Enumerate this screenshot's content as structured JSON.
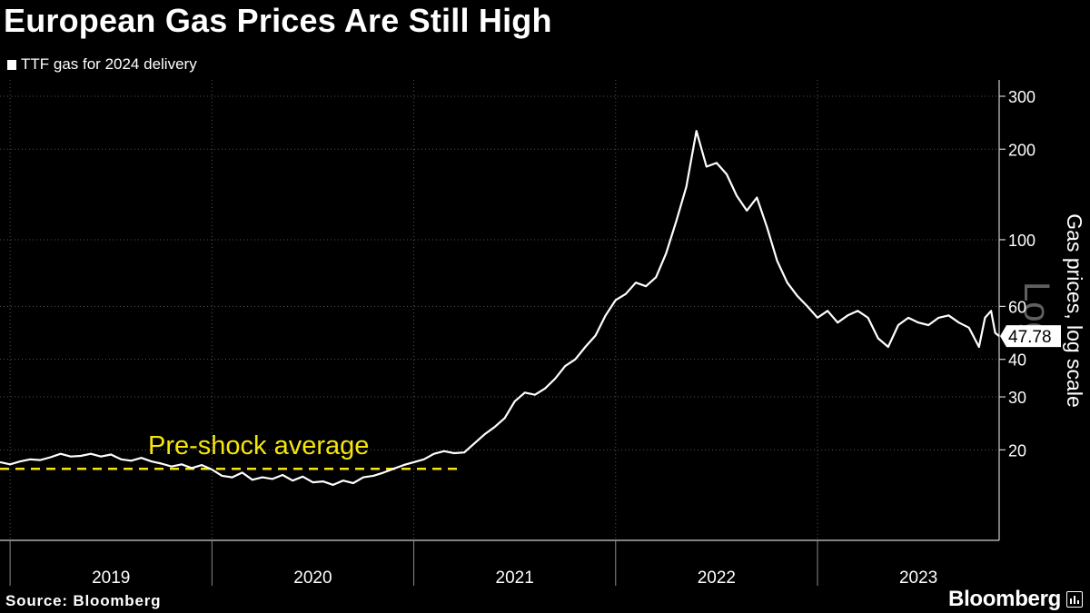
{
  "title": "European Gas Prices Are Still High",
  "legend": {
    "label": "TTF gas for 2024 delivery"
  },
  "source": "Source: Bloomberg",
  "brand": "Bloomberg",
  "chart_data": {
    "type": "line",
    "title": "European Gas Prices Are Still High",
    "ylabel": "Gas prices, log scale",
    "scale": "log",
    "watermark": "Log",
    "ylim": [
      10,
      340
    ],
    "y_ticks": [
      20,
      30,
      40,
      60,
      100,
      200,
      300
    ],
    "x_ticks": [
      "2019",
      "2020",
      "2021",
      "2022",
      "2023"
    ],
    "xlim": [
      2018.95,
      2023.9
    ],
    "last_value_label": "47.78",
    "colors": {
      "series": "#ffffff",
      "reference": "#f5e50d",
      "background": "#000000",
      "grid": "#555555"
    },
    "reference_line": {
      "label": "Pre-shock average",
      "value": 17.3,
      "x_start": 2018.95,
      "x_end": 2021.22
    },
    "series": [
      {
        "name": "TTF gas for 2024 delivery",
        "x": [
          2018.95,
          2019.0,
          2019.05,
          2019.1,
          2019.15,
          2019.2,
          2019.25,
          2019.3,
          2019.35,
          2019.4,
          2019.45,
          2019.5,
          2019.55,
          2019.6,
          2019.65,
          2019.7,
          2019.75,
          2019.8,
          2019.85,
          2019.9,
          2019.95,
          2020.0,
          2020.05,
          2020.1,
          2020.15,
          2020.2,
          2020.25,
          2020.3,
          2020.35,
          2020.4,
          2020.45,
          2020.5,
          2020.55,
          2020.6,
          2020.65,
          2020.7,
          2020.75,
          2020.8,
          2020.85,
          2020.9,
          2020.95,
          2021.0,
          2021.05,
          2021.1,
          2021.15,
          2021.2,
          2021.25,
          2021.3,
          2021.35,
          2021.4,
          2021.45,
          2021.5,
          2021.55,
          2021.6,
          2021.65,
          2021.7,
          2021.75,
          2021.8,
          2021.85,
          2021.9,
          2021.95,
          2022.0,
          2022.05,
          2022.1,
          2022.15,
          2022.2,
          2022.25,
          2022.3,
          2022.35,
          2022.4,
          2022.45,
          2022.5,
          2022.55,
          2022.6,
          2022.65,
          2022.7,
          2022.75,
          2022.8,
          2022.85,
          2022.9,
          2022.95,
          2023.0,
          2023.05,
          2023.1,
          2023.15,
          2023.2,
          2023.25,
          2023.3,
          2023.35,
          2023.4,
          2023.45,
          2023.5,
          2023.55,
          2023.6,
          2023.65,
          2023.7,
          2023.75,
          2023.8,
          2023.83,
          2023.86,
          2023.88,
          2023.9
        ],
        "values": [
          18.2,
          17.9,
          18.3,
          18.6,
          18.5,
          18.9,
          19.4,
          19.0,
          19.1,
          19.4,
          19.0,
          19.3,
          18.6,
          18.4,
          18.8,
          18.3,
          18.0,
          17.6,
          17.9,
          17.4,
          17.8,
          17.2,
          16.4,
          16.2,
          16.8,
          15.9,
          16.2,
          16.0,
          16.5,
          15.8,
          16.3,
          15.6,
          15.7,
          15.3,
          15.8,
          15.5,
          16.2,
          16.4,
          16.8,
          17.3,
          17.8,
          18.2,
          18.6,
          19.4,
          19.8,
          19.5,
          19.6,
          21.0,
          22.5,
          23.8,
          25.5,
          29.0,
          31.0,
          30.5,
          32.0,
          34.5,
          38.0,
          40.0,
          44.0,
          48.0,
          56.0,
          63.0,
          66.0,
          72.0,
          70.0,
          75.0,
          90.0,
          115.0,
          150.0,
          230.0,
          175.0,
          180.0,
          165.0,
          140.0,
          125.0,
          138.0,
          110.0,
          85.0,
          72.0,
          65.0,
          60.0,
          55.0,
          58.0,
          53.0,
          56.0,
          58.0,
          55.0,
          47.0,
          44.0,
          52.0,
          55.0,
          53.0,
          52.0,
          55.0,
          56.0,
          53.0,
          51.0,
          44.0,
          55.0,
          58.0,
          49.0,
          47.78
        ]
      }
    ]
  }
}
